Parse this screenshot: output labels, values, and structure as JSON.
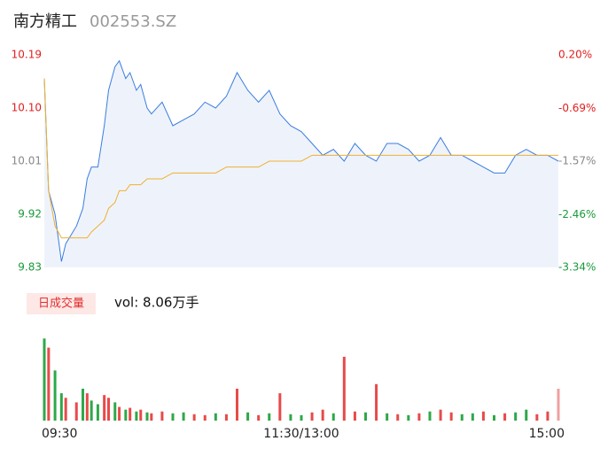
{
  "header": {
    "name": "南方精工",
    "code": "002553.SZ"
  },
  "chart_data": [
    {
      "type": "line",
      "x": [
        0,
        2,
        5,
        8,
        10,
        15,
        18,
        20,
        22,
        25,
        28,
        30,
        33,
        35,
        38,
        40,
        43,
        45,
        48,
        50,
        55,
        60,
        65,
        70,
        75,
        80,
        85,
        90,
        95,
        100,
        105,
        110,
        115,
        120,
        125,
        130,
        135,
        140,
        145,
        150,
        155,
        160,
        165,
        170,
        175,
        180,
        185,
        190,
        195,
        200,
        205,
        210,
        215,
        220,
        225,
        230,
        235,
        240
      ],
      "series": [
        {
          "color": "#3b7de0",
          "fill": "#eef3fb",
          "values": [
            10.15,
            9.96,
            9.92,
            9.84,
            9.87,
            9.9,
            9.93,
            9.98,
            10.0,
            10.0,
            10.07,
            10.13,
            10.17,
            10.18,
            10.15,
            10.16,
            10.13,
            10.14,
            10.1,
            10.09,
            10.11,
            10.07,
            10.08,
            10.09,
            10.11,
            10.1,
            10.12,
            10.16,
            10.13,
            10.11,
            10.13,
            10.09,
            10.07,
            10.06,
            10.04,
            10.02,
            10.03,
            10.01,
            10.04,
            10.02,
            10.01,
            10.04,
            10.04,
            10.03,
            10.01,
            10.02,
            10.05,
            10.02,
            10.02,
            10.01,
            10.0,
            9.99,
            9.99,
            10.02,
            10.03,
            10.02,
            10.02,
            10.01
          ]
        },
        {
          "color": "#f0b030",
          "values": [
            10.15,
            9.96,
            9.9,
            9.88,
            9.88,
            9.88,
            9.88,
            9.88,
            9.89,
            9.9,
            9.91,
            9.93,
            9.94,
            9.96,
            9.96,
            9.97,
            9.97,
            9.97,
            9.98,
            9.98,
            9.98,
            9.99,
            9.99,
            9.99,
            9.99,
            9.99,
            10.0,
            10.0,
            10.0,
            10.0,
            10.01,
            10.01,
            10.01,
            10.01,
            10.02,
            10.02,
            10.02,
            10.02,
            10.02,
            10.02,
            10.02,
            10.02,
            10.02,
            10.02,
            10.02,
            10.02,
            10.02,
            10.02,
            10.02,
            10.02,
            10.02,
            10.02,
            10.02,
            10.02,
            10.02,
            10.02,
            10.02,
            10.02
          ]
        }
      ],
      "xlim": [
        0,
        240
      ],
      "xticks": [
        {
          "value": 0,
          "label": "09:30"
        },
        {
          "value": 120,
          "label": "11:30/13:00"
        },
        {
          "value": 240,
          "label": "15:00"
        }
      ],
      "ylim": [
        9.83,
        10.19
      ],
      "yticks": [
        9.83,
        9.92,
        10.01,
        {
          "value": 10.1,
          "label": "10.10"
        },
        10.19
      ],
      "ytick_colors": [
        "#1a9a3a",
        "#1a9a3a",
        "#888888",
        "#e02020",
        "#e02020"
      ],
      "y2lim": [
        -3.34,
        0.2
      ],
      "y2ticks": [
        {
          "value": -3.34,
          "label": "-3.34%"
        },
        {
          "value": -2.46,
          "label": "-2.46%"
        },
        {
          "value": -1.57,
          "label": "-1.57%"
        },
        {
          "value": -0.69,
          "label": "-0.69%"
        },
        {
          "value": 0.2,
          "label": "0.20%"
        }
      ]
    },
    {
      "type": "bar",
      "label": "日成交量",
      "title": "vol: 8.06万手",
      "x": [
        0,
        2,
        5,
        8,
        10,
        15,
        18,
        20,
        22,
        25,
        28,
        30,
        33,
        35,
        38,
        40,
        43,
        45,
        48,
        50,
        55,
        60,
        65,
        70,
        75,
        80,
        85,
        90,
        95,
        100,
        105,
        110,
        115,
        120,
        125,
        130,
        135,
        140,
        145,
        150,
        155,
        160,
        165,
        170,
        175,
        180,
        185,
        190,
        195,
        200,
        205,
        210,
        215,
        220,
        225,
        230,
        235,
        240
      ],
      "values": [
        90,
        80,
        55,
        30,
        25,
        20,
        35,
        30,
        22,
        18,
        28,
        25,
        20,
        15,
        12,
        14,
        10,
        12,
        9,
        8,
        10,
        8,
        9,
        7,
        6,
        8,
        7,
        35,
        9,
        6,
        8,
        30,
        7,
        6,
        9,
        12,
        8,
        70,
        10,
        9,
        40,
        8,
        7,
        6,
        8,
        10,
        12,
        9,
        7,
        8,
        10,
        6,
        8,
        9,
        12,
        7,
        10,
        35
      ],
      "colors": [
        "#2ea84a",
        "#e84a4a",
        "#2ea84a",
        "#2ea84a",
        "#e84a4a",
        "#e84a4a",
        "#2ea84a",
        "#e84a4a",
        "#2ea84a",
        "#2ea84a",
        "#e84a4a",
        "#e84a4a",
        "#2ea84a",
        "#e84a4a",
        "#2ea84a",
        "#e84a4a",
        "#2ea84a",
        "#e84a4a",
        "#2ea84a",
        "#e84a4a",
        "#e84a4a",
        "#2ea84a",
        "#2ea84a",
        "#e84a4a",
        "#e84a4a",
        "#2ea84a",
        "#e84a4a",
        "#e84a4a",
        "#2ea84a",
        "#e84a4a",
        "#2ea84a",
        "#e84a4a",
        "#2ea84a",
        "#2ea84a",
        "#e84a4a",
        "#e84a4a",
        "#2ea84a",
        "#e84a4a",
        "#e84a4a",
        "#2ea84a",
        "#e84a4a",
        "#2ea84a",
        "#e84a4a",
        "#2ea84a",
        "#e84a4a",
        "#2ea84a",
        "#e84a4a",
        "#e84a4a",
        "#2ea84a",
        "#2ea84a",
        "#e84a4a",
        "#2ea84a",
        "#e84a4a",
        "#2ea84a",
        "#2ea84a",
        "#e84a4a",
        "#e84a4a",
        "#f0a0a0"
      ],
      "xlim": [
        0,
        240
      ],
      "ylim": [
        0,
        100
      ]
    }
  ]
}
